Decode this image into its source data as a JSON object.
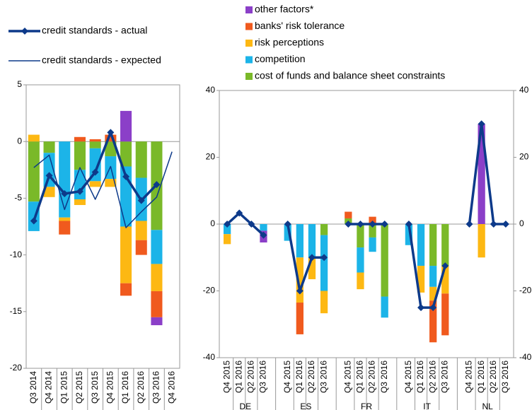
{
  "chart_data": [
    {
      "type": "bar",
      "categories": [
        "Q3 2014",
        "Q4 2014",
        "Q1 2015",
        "Q2 2015",
        "Q3 2015",
        "Q4 2015",
        "Q1 2016",
        "Q2 2016",
        "Q3 2016",
        "Q4 2016"
      ],
      "ylim": [
        -20,
        5
      ],
      "yticks": [
        -20,
        -15,
        -10,
        -5,
        0,
        5
      ],
      "series": [
        {
          "name": "cost of funds and balance sheet constraints",
          "color": "#7ab929",
          "values": [
            -5.3,
            -1.0,
            0,
            -2.5,
            -0.6,
            -1.3,
            -2.2,
            -3.2,
            -7.8,
            null
          ]
        },
        {
          "name": "competition",
          "color": "#1cb4e8",
          "values": [
            -2.6,
            -3.0,
            -6.7,
            -2.6,
            -2.9,
            -2.0,
            -5.3,
            -3.8,
            -3.0,
            null
          ]
        },
        {
          "name": "risk perceptions",
          "color": "#fdb813",
          "values": [
            0.6,
            -0.9,
            -0.3,
            -0.5,
            -0.5,
            -0.7,
            -5.0,
            -1.7,
            -2.4,
            null
          ]
        },
        {
          "name": "banks' risk tolerance",
          "color": "#f05a1e",
          "values": [
            0,
            0,
            -1.2,
            0.4,
            0.2,
            0.6,
            -1.1,
            -1.3,
            -2.3,
            null
          ]
        },
        {
          "name": "other factors*",
          "color": "#8b3fc8",
          "values": [
            0,
            0,
            0,
            0,
            0,
            0,
            2.7,
            0,
            -0.7,
            null
          ]
        },
        {
          "name": "credit standards - actual",
          "type": "line",
          "color": "#0d3a8a",
          "marker": "diamond",
          "line_width": 3.5,
          "values": [
            -7.0,
            -3.0,
            -4.6,
            -4.4,
            -2.7,
            0.8,
            -3.1,
            -5.2,
            -3.8,
            null
          ]
        },
        {
          "name": "credit standards - expected",
          "type": "line",
          "color": "#0d3a8a",
          "line_width": 1.5,
          "values": [
            -2.3,
            -1.2,
            -6.0,
            -2.3,
            -5.1,
            -2.2,
            -7.6,
            -6.2,
            -4.9,
            -0.9
          ]
        }
      ]
    },
    {
      "type": "bar",
      "groups": [
        "DE",
        "ES",
        "FR",
        "IT",
        "NL"
      ],
      "categories": [
        "Q4 2015",
        "Q1 2016",
        "Q2 2016",
        "Q3 2016",
        "Q4 2015",
        "Q1 2016",
        "Q2 2016",
        "Q3 2016",
        "Q4 2015",
        "Q1 2016",
        "Q2 2016",
        "Q3 2016",
        "Q4 2015",
        "Q1 2016",
        "Q2 2016",
        "Q3 2016",
        "Q4 2015",
        "Q1 2016",
        "Q2 2016",
        "Q3 2016"
      ],
      "ylim": [
        -40,
        40
      ],
      "yticks": [
        -40,
        -20,
        0,
        20,
        40
      ],
      "y2lim": [
        -40,
        40
      ],
      "y2ticks": [
        -40,
        -20,
        0,
        20,
        40
      ],
      "series": [
        {
          "color": "#7ab929",
          "values": [
            0,
            0,
            0,
            0,
            0,
            0,
            0,
            -3.3,
            1.7,
            -7.0,
            -4.0,
            -21.7,
            0,
            0,
            -12.5,
            -12.5,
            0,
            0,
            0,
            0
          ]
        },
        {
          "color": "#1cb4e8",
          "values": [
            -3.0,
            0,
            0,
            -2.0,
            -5.0,
            -10.0,
            -10.0,
            -16.7,
            0,
            -7.5,
            -4.3,
            -6.3,
            -6.3,
            -12.5,
            -6.3,
            0,
            0,
            0,
            0,
            0
          ]
        },
        {
          "color": "#fdb813",
          "values": [
            -3.0,
            0,
            0,
            0,
            0,
            -13.5,
            -6.5,
            -6.7,
            0,
            -5.0,
            0,
            0,
            0,
            -8.0,
            -4.1,
            -8.3,
            0,
            -10.0,
            0,
            0
          ]
        },
        {
          "color": "#f05a1e",
          "values": [
            0,
            0,
            0,
            0,
            0,
            -9.5,
            0,
            0,
            2.0,
            0,
            2.2,
            0,
            0,
            0,
            -12.5,
            -12.5,
            0,
            0,
            0,
            0
          ]
        },
        {
          "color": "#8b3fc8",
          "values": [
            0,
            0,
            0,
            -3.5,
            0,
            0,
            0,
            0,
            0,
            0,
            0,
            0,
            0,
            0,
            0,
            0,
            0,
            30.0,
            0,
            0
          ]
        },
        {
          "type": "line",
          "color": "#0d3a8a",
          "marker": "diamond",
          "line_width": 3.5,
          "values": [
            0,
            3.3,
            0,
            -3.3,
            0,
            -20.0,
            -10.0,
            -10.0,
            0,
            0,
            0,
            0,
            0,
            -25.0,
            -25.0,
            -12.5,
            0,
            30.0,
            0,
            0
          ]
        }
      ]
    }
  ]
}
